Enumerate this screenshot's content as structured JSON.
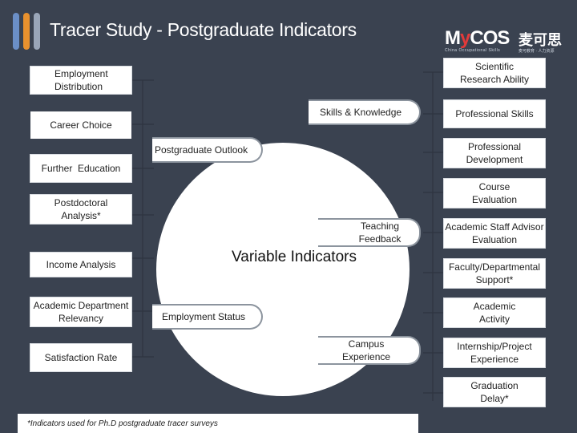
{
  "header": {
    "title": "Tracer Study - Postgraduate Indicators",
    "logo_text_1": "M",
    "logo_text_accent": "y",
    "logo_text_2": "COS",
    "logo_cn": "麦可思",
    "logo_sub": "China Occupational Skills",
    "logo_sub_cn": "麦可教育 · 人力资源"
  },
  "center_title": "Variable Indicators",
  "left_column": [
    "Employment Distribution",
    "Career Choice",
    "Further  Education",
    "Postdoctoral Analysis*",
    "Income Analysis",
    "Academic Department Relevancy",
    "Satisfaction Rate"
  ],
  "inner_pills": [
    "Skills & Knowledge",
    "Postgraduate Outlook",
    "Teaching Feedback",
    "Employment Status",
    "Campus Experience"
  ],
  "right_column": [
    "Scientific Research Ability",
    "Professional Skills",
    "Professional Development",
    "Course Evaluation",
    "Academic Staff Advisor Evaluation",
    "Faculty/Departmental Support*",
    "Academic Activity",
    "Internship/Project Experience",
    "Graduation Delay*"
  ],
  "footnote": "*Indicators used for Ph.D postgraduate tracer surveys",
  "colors": {
    "background": "#3a4250",
    "connector": "#2f3440",
    "pill_border": "#8c949e"
  }
}
